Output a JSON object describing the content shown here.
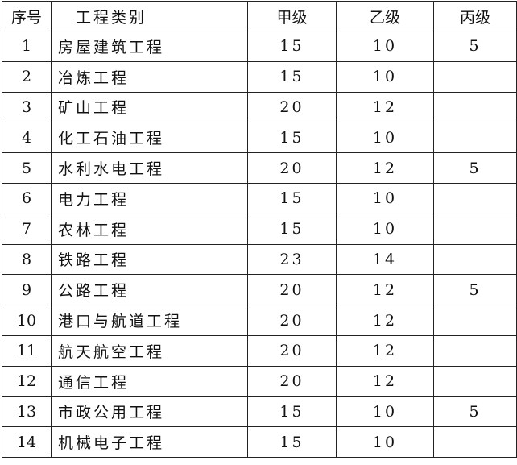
{
  "headers": [
    "序号",
    "工程类别",
    "甲级",
    "乙级",
    "丙级"
  ],
  "rows": [
    [
      "1",
      "房屋建筑工程",
      "15",
      "10",
      "5"
    ],
    [
      "2",
      "冶炼工程",
      "15",
      "10",
      ""
    ],
    [
      "3",
      "矿山工程",
      "20",
      "12",
      ""
    ],
    [
      "4",
      "化工石油工程",
      "15",
      "10",
      ""
    ],
    [
      "5",
      "水利水电工程",
      "20",
      "12",
      "5"
    ],
    [
      "6",
      "电力工程",
      "15",
      "10",
      ""
    ],
    [
      "7",
      "农林工程",
      "15",
      "10",
      ""
    ],
    [
      "8",
      "铁路工程",
      "23",
      "14",
      ""
    ],
    [
      "9",
      "公路工程",
      "20",
      "12",
      "5"
    ],
    [
      "10",
      "港口与航道工程",
      "20",
      "12",
      ""
    ],
    [
      "11",
      "航天航空工程",
      "20",
      "12",
      ""
    ],
    [
      "12",
      "通信工程",
      "20",
      "12",
      ""
    ],
    [
      "13",
      "市政公用工程",
      "15",
      "10",
      "5"
    ],
    [
      "14",
      "机械电子工程",
      "15",
      "10",
      ""
    ]
  ]
}
